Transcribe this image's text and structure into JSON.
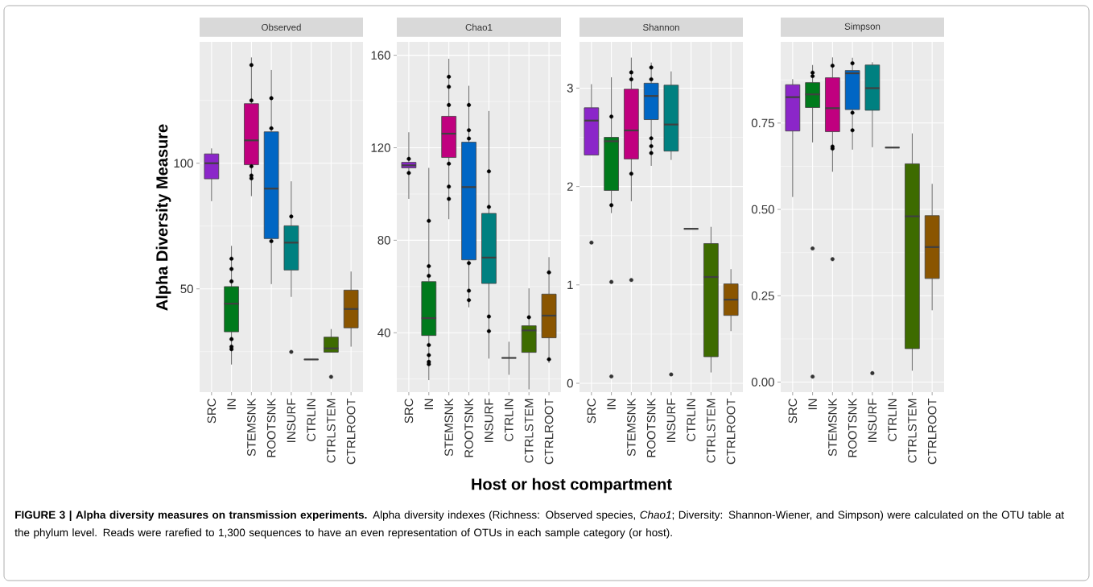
{
  "chart_data": [
    {
      "type": "box",
      "title": "Observed",
      "ylabel": "Alpha Diversity Measure",
      "annotations": [
        "**FIGURE 3 | Alpha diversity measures on transmission experiments.** Alpha diversity indexes (Richness: Observed species, *Chao1*; Diversity: Shannon-Wiener, and Simpson) were calculated on the OTU table at the phylum level. Reads were rarefied to 1,300 sequences to have an even representation of OTUs in each sample category (or host)."
      ],
      "categories": [
        "SRC",
        "IN",
        "STEMSNK",
        "ROOTSNK",
        "INSURF",
        "CTRLIN",
        "CTRLSTEM",
        "CTRLROOT"
      ],
      "colors": [
        "#8b26c9",
        "#007a1c",
        "#c0007f",
        "#0066c4",
        "#008080",
        "#404040",
        "#3d6b00",
        "#8a5500"
      ],
      "boxes": [
        {
          "low": 84.9,
          "q1": 93.8,
          "median": 100,
          "q3": 103.7,
          "high": 105.9
        },
        {
          "low": 19.9,
          "q1": 32.9,
          "median": 44.1,
          "q3": 50.9,
          "high": 67.1
        },
        {
          "low": 86.9,
          "q1": 99.4,
          "median": 109.1,
          "q3": 123.7,
          "high": 142.1
        },
        {
          "low": 51.9,
          "q1": 70.0,
          "median": 89.9,
          "q3": 112.5,
          "high": 137.1
        },
        {
          "low": 46.8,
          "q1": 57.5,
          "median": 68.4,
          "q3": 75.1,
          "high": 92.8,
          "outliers": [
            24.9
          ]
        },
        {
          "low": 21.9,
          "q1": 21.9,
          "median": 21.9,
          "q3": 21.9,
          "high": 21.9
        },
        {
          "low": 24.8,
          "q1": 24.8,
          "median": 26.3,
          "q3": 30.8,
          "high": 34.0,
          "outliers": [
            15.0
          ]
        },
        {
          "low": 27.0,
          "q1": 34.5,
          "median": 42.0,
          "q3": 49.5,
          "high": 56.9
        }
      ],
      "series": [
        {
          "type": "scatter",
          "marker": "circle",
          "color": "#000000",
          "x": [
            "IN",
            "IN",
            "IN",
            "IN",
            "IN",
            "IN",
            "STEMSNK",
            "STEMSNK",
            "STEMSNK",
            "STEMSNK",
            "STEMSNK",
            "ROOTSNK",
            "ROOTSNK",
            "ROOTSNK",
            "INSURF"
          ],
          "values": [
            62.0,
            57.9,
            53.0,
            30.0,
            27.0,
            26.0,
            139.1,
            125.0,
            98.8,
            95.1,
            94.0,
            125.9,
            113.9,
            69.0,
            78.8
          ]
        }
      ],
      "ylim": [
        8.9,
        148.3
      ],
      "yticks": [
        50,
        100
      ],
      "grid": true
    },
    {
      "type": "box",
      "title": "Chao1",
      "xlabel": "Host or host compartment",
      "categories": [
        "SRC",
        "IN",
        "STEMSNK",
        "ROOTSNK",
        "INSURF",
        "CTRLIN",
        "CTRLSTEM",
        "CTRLROOT"
      ],
      "colors": [
        "#8b26c9",
        "#007a1c",
        "#c0007f",
        "#0066c4",
        "#008080",
        "#404040",
        "#3d6b00",
        "#8a5500"
      ],
      "boxes": [
        {
          "low": 97.9,
          "q1": 111.3,
          "median": 112.4,
          "q3": 113.7,
          "high": 126.7
        },
        {
          "low": 19.5,
          "q1": 38.8,
          "median": 46.3,
          "q3": 62.1,
          "high": 111.3
        },
        {
          "low": 89.1,
          "q1": 115.8,
          "median": 126.1,
          "q3": 133.6,
          "high": 158.5
        },
        {
          "low": 51.0,
          "q1": 71.5,
          "median": 103.0,
          "q3": 122.4,
          "high": 146.8
        },
        {
          "low": 28.8,
          "q1": 61.3,
          "median": 72.5,
          "q3": 91.6,
          "high": 135.9
        },
        {
          "low": 21.8,
          "q1": 29.1,
          "median": 29.1,
          "q3": 29.1,
          "high": 36.1
        },
        {
          "low": 15.5,
          "q1": 31.5,
          "median": 41.0,
          "q3": 43.0,
          "high": 59.2
        },
        {
          "low": 26.9,
          "q1": 37.8,
          "median": 47.4,
          "q3": 56.7,
          "high": 72.7
        }
      ],
      "series": [
        {
          "type": "scatter",
          "marker": "circle",
          "color": "#000000",
          "x": [
            "SRC",
            "SRC",
            "IN",
            "IN",
            "IN",
            "IN",
            "IN",
            "IN",
            "IN",
            "STEMSNK",
            "STEMSNK",
            "STEMSNK",
            "STEMSNK",
            "STEMSNK",
            "STEMSNK",
            "ROOTSNK",
            "ROOTSNK",
            "ROOTSNK",
            "ROOTSNK",
            "ROOTSNK",
            "ROOTSNK",
            "INSURF",
            "INSURF",
            "INSURF",
            "INSURF",
            "CTRLSTEM",
            "CTRLROOT",
            "CTRLROOT"
          ],
          "values": [
            115.2,
            109.1,
            88.4,
            68.8,
            64.6,
            34.7,
            30.3,
            27.4,
            26.4,
            150.7,
            146.4,
            138.5,
            113.1,
            103.2,
            97.9,
            138.5,
            127.6,
            124.0,
            70.1,
            58.2,
            54.1,
            109.8,
            94.4,
            47.0,
            40.7,
            46.7,
            66.1,
            28.5
          ]
        }
      ],
      "ylim": [
        14.3,
        165.8
      ],
      "yticks": [
        40,
        80,
        120,
        160
      ],
      "grid": true
    },
    {
      "type": "box",
      "title": "Shannon",
      "categories": [
        "SRC",
        "IN",
        "STEMSNK",
        "ROOTSNK",
        "INSURF",
        "CTRLIN",
        "CTRLSTEM",
        "CTRLROOT"
      ],
      "colors": [
        "#8b26c9",
        "#007a1c",
        "#c0007f",
        "#0066c4",
        "#008080",
        "#404040",
        "#3d6b00",
        "#8a5500"
      ],
      "boxes": [
        {
          "low": 2.32,
          "q1": 2.32,
          "median": 2.67,
          "q3": 2.8,
          "high": 3.04,
          "outliers": [
            1.43
          ]
        },
        {
          "low": 1.73,
          "q1": 1.96,
          "median": 2.46,
          "q3": 2.5,
          "high": 3.11,
          "outliers": [
            1.03,
            0.07
          ]
        },
        {
          "low": 1.85,
          "q1": 2.28,
          "median": 2.57,
          "q3": 2.99,
          "high": 3.31,
          "outliers": [
            1.05
          ]
        },
        {
          "low": 2.21,
          "q1": 2.68,
          "median": 2.92,
          "q3": 3.05,
          "high": 3.26
        },
        {
          "low": 2.27,
          "q1": 2.36,
          "median": 2.63,
          "q3": 3.03,
          "high": 3.17,
          "outliers": [
            0.09
          ]
        },
        {
          "low": 1.57,
          "q1": 1.57,
          "median": 1.57,
          "q3": 1.57,
          "high": 1.57
        },
        {
          "low": 0.11,
          "q1": 0.27,
          "median": 1.08,
          "q3": 1.42,
          "high": 1.59
        },
        {
          "low": 0.53,
          "q1": 0.69,
          "median": 0.85,
          "q3": 1.01,
          "high": 1.16
        }
      ],
      "series": [
        {
          "type": "scatter",
          "marker": "circle",
          "color": "#000000",
          "x": [
            "IN",
            "IN",
            "STEMSNK",
            "STEMSNK",
            "STEMSNK",
            "ROOTSNK",
            "ROOTSNK",
            "ROOTSNK",
            "ROOTSNK",
            "ROOTSNK"
          ],
          "values": [
            2.71,
            1.81,
            3.16,
            3.09,
            2.13,
            3.21,
            3.09,
            2.49,
            2.41,
            2.34
          ]
        }
      ],
      "ylim": [
        -0.09,
        3.47
      ],
      "yticks": [
        0,
        1,
        2,
        3
      ],
      "grid": true
    },
    {
      "type": "box",
      "title": "Simpson",
      "categories": [
        "SRC",
        "IN",
        "STEMSNK",
        "ROOTSNK",
        "INSURF",
        "CTRLIN",
        "CTRLSTEM",
        "CTRLROOT"
      ],
      "colors": [
        "#8b26c9",
        "#007a1c",
        "#c0007f",
        "#0066c4",
        "#008080",
        "#404040",
        "#3d6b00",
        "#8a5500"
      ],
      "boxes": [
        {
          "low": 0.536,
          "q1": 0.727,
          "median": 0.825,
          "q3": 0.861,
          "high": 0.877
        },
        {
          "low": 0.694,
          "q1": 0.795,
          "median": 0.833,
          "q3": 0.867,
          "high": 0.918,
          "outliers": [
            0.387,
            0.016
          ]
        },
        {
          "low": 0.609,
          "q1": 0.725,
          "median": 0.793,
          "q3": 0.881,
          "high": 0.94,
          "outliers": [
            0.356
          ]
        },
        {
          "low": 0.673,
          "q1": 0.789,
          "median": 0.894,
          "q3": 0.902,
          "high": 0.939
        },
        {
          "low": 0.68,
          "q1": 0.787,
          "median": 0.851,
          "q3": 0.918,
          "high": 0.926,
          "outliers": [
            0.026
          ]
        },
        {
          "low": 0.679,
          "q1": 0.679,
          "median": 0.679,
          "q3": 0.679,
          "high": 0.679
        },
        {
          "low": 0.033,
          "q1": 0.097,
          "median": 0.48,
          "q3": 0.632,
          "high": 0.72
        },
        {
          "low": 0.208,
          "q1": 0.3,
          "median": 0.391,
          "q3": 0.482,
          "high": 0.574
        }
      ],
      "series": [
        {
          "type": "scatter",
          "marker": "circle",
          "color": "#000000",
          "x": [
            "IN",
            "IN",
            "STEMSNK",
            "STEMSNK",
            "STEMSNK",
            "ROOTSNK",
            "ROOTSNK",
            "ROOTSNK"
          ],
          "values": [
            0.896,
            0.886,
            0.916,
            0.682,
            0.676,
            0.923,
            0.78,
            0.729
          ]
        }
      ],
      "ylim": [
        -0.029,
        0.985
      ],
      "yticks": [
        {
          "value": 0,
          "label": "0.00"
        },
        {
          "value": 0.25,
          "label": "0.25"
        },
        {
          "value": 0.5,
          "label": "0.50"
        },
        {
          "value": 0.75,
          "label": "0.75"
        }
      ],
      "grid": true
    }
  ]
}
